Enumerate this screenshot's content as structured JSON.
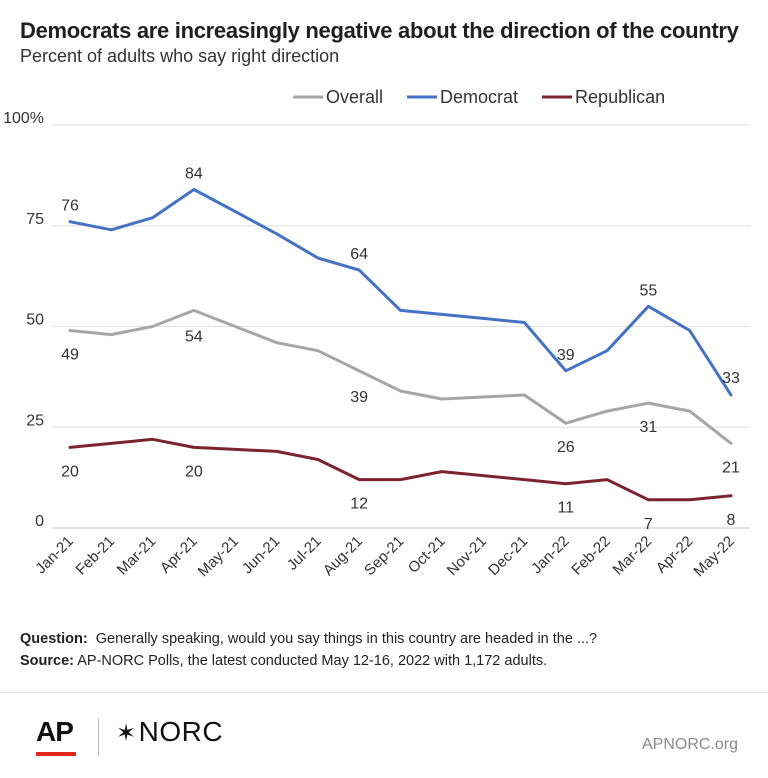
{
  "header": {
    "title": "Democrats are increasingly negative about the direction of the country",
    "subtitle": "Percent of adults who say right direction"
  },
  "colors": {
    "overall": "#a6a6a6",
    "democrat": "#4472c4",
    "republican": "#7b2430",
    "grid": "#e0e0e0",
    "ap_red": "#e0281f"
  },
  "chart_data": {
    "type": "line",
    "categories": [
      "Jan-21",
      "Feb-21",
      "Mar-21",
      "Apr-21",
      "May-21",
      "Jun-21",
      "Jul-21",
      "Aug-21",
      "Sep-21",
      "Oct-21",
      "Nov-21",
      "Dec-21",
      "Jan-22",
      "Feb-22",
      "Mar-22",
      "Apr-22",
      "May-22"
    ],
    "series": [
      {
        "name": "Overall",
        "values": [
          49,
          48,
          50,
          54,
          null,
          46,
          44,
          39,
          34,
          32,
          null,
          33,
          26,
          29,
          31,
          29,
          21
        ]
      },
      {
        "name": "Democrat",
        "values": [
          76,
          74,
          77,
          84,
          null,
          73,
          67,
          64,
          54,
          53,
          null,
          51,
          39,
          44,
          55,
          49,
          33
        ]
      },
      {
        "name": "Republican",
        "values": [
          20,
          21,
          22,
          20,
          null,
          19,
          17,
          12,
          12,
          14,
          null,
          12,
          11,
          12,
          7,
          7,
          8
        ]
      }
    ],
    "ylim": [
      0,
      100
    ],
    "yticks": [
      "0",
      "25",
      "50",
      "75",
      "100%"
    ],
    "ytick_values": [
      0,
      25,
      50,
      75,
      100
    ],
    "grid": true,
    "legend_position": "top-right",
    "data_labels": [
      {
        "series": "Democrat",
        "category": "Jan-21",
        "text": "76"
      },
      {
        "series": "Democrat",
        "category": "Apr-21",
        "text": "84"
      },
      {
        "series": "Democrat",
        "category": "Aug-21",
        "text": "64"
      },
      {
        "series": "Democrat",
        "category": "Jan-22",
        "text": "39"
      },
      {
        "series": "Democrat",
        "category": "Mar-22",
        "text": "55"
      },
      {
        "series": "Democrat",
        "category": "May-22",
        "text": "33"
      },
      {
        "series": "Overall",
        "category": "Jan-21",
        "text": "49"
      },
      {
        "series": "Overall",
        "category": "Apr-21",
        "text": "54"
      },
      {
        "series": "Overall",
        "category": "Aug-21",
        "text": "39"
      },
      {
        "series": "Overall",
        "category": "Jan-22",
        "text": "26"
      },
      {
        "series": "Overall",
        "category": "Mar-22",
        "text": "31"
      },
      {
        "series": "Overall",
        "category": "May-22",
        "text": "21"
      },
      {
        "series": "Republican",
        "category": "Jan-21",
        "text": "20"
      },
      {
        "series": "Republican",
        "category": "Apr-21",
        "text": "20"
      },
      {
        "series": "Republican",
        "category": "Aug-21",
        "text": "12"
      },
      {
        "series": "Republican",
        "category": "Jan-22",
        "text": "11"
      },
      {
        "series": "Republican",
        "category": "Mar-22",
        "text": "7"
      },
      {
        "series": "Republican",
        "category": "May-22",
        "text": "8"
      }
    ]
  },
  "notes": {
    "question_label": "Question:",
    "question_text": "Generally speaking, would you say things in this country are headed in the ...?",
    "source_label": "Source:",
    "source_text": "AP-NORC Polls, the latest conducted May 12-16, 2022 with 1,172 adults."
  },
  "footer": {
    "ap_logo": "AP",
    "norc_logo": "NORC",
    "norc_star": "✶",
    "site": "APNORC.org"
  }
}
